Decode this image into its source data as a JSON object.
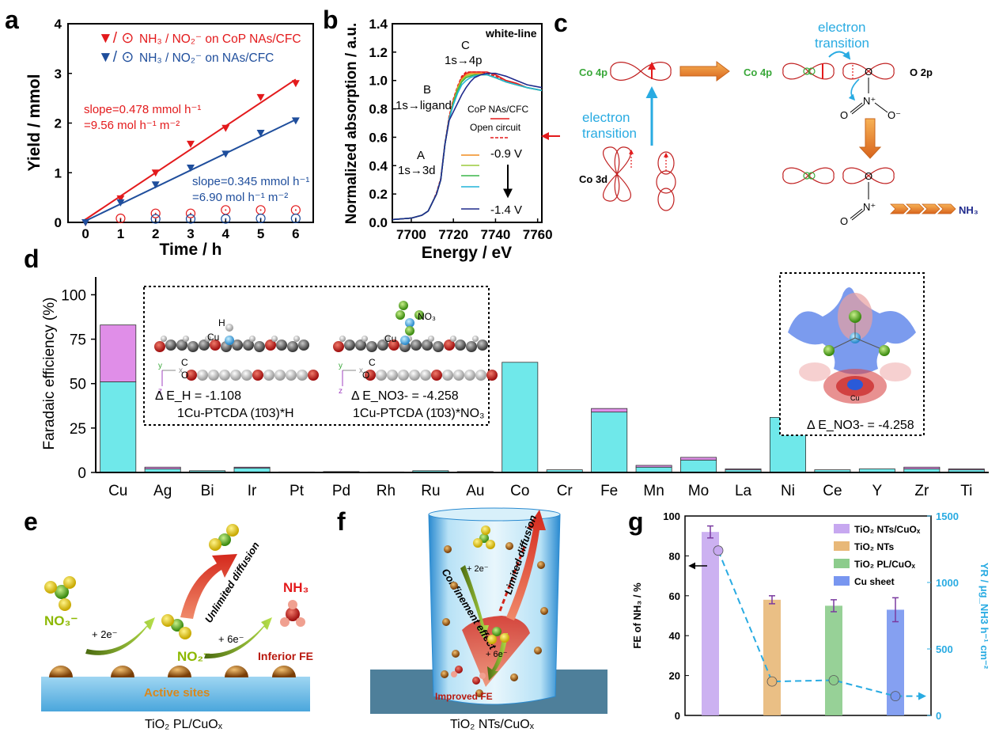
{
  "panels": {
    "a": "a",
    "b": "b",
    "c": "c",
    "d": "d",
    "e": "e",
    "f": "f",
    "g": "g"
  },
  "panel_a": {
    "legend": [
      {
        "markers": "▼/ ⊙",
        "text": "NH₃ / NO₂⁻ on CoP NAs/CFC",
        "color": "#e31a1c"
      },
      {
        "markers": "▼/ ⊙",
        "text": "NH₃ / NO₂⁻  on NAs/CFC",
        "color": "#1f4e9c"
      }
    ],
    "slope1_line1": "slope=0.478 mmol h⁻¹",
    "slope1_line2": "=9.56 mol h⁻¹ m⁻²",
    "slope2_line1": "slope=0.345 mmol h⁻¹",
    "slope2_line2": "=6.90 mol h⁻¹ m⁻²"
  },
  "panel_b": {
    "label_white": "white-line",
    "label_C1": "C",
    "label_C2": "1s→4p",
    "label_B1": "B",
    "label_B2": "1s→ligand",
    "label_A1": "A",
    "label_A2": "1s→3d",
    "legend1": "CoP NAs/CFC",
    "legend2": "Open circuit",
    "legend3": "-0.9 V",
    "legend4": "-1.4 V"
  },
  "panel_c": {
    "co4p_left": "Co 4p",
    "co4p_right": "Co 4p",
    "o2p": "O 2p",
    "co3d": "Co 3d",
    "et_up1": "electron",
    "et_up2": "transition",
    "et_mid1": "electron",
    "et_mid2": "transition",
    "nh3": "NH₃",
    "n_plus": "N⁺",
    "o_minus": "O⁻",
    "o": "O"
  },
  "panel_d": {
    "inset1_energy_H": "Δ E_H = -1.108",
    "inset1_caption_H": "1Cu-PTCDA (1̄03)*H",
    "inset1_energy_NO3": "Δ E_NO3- = -4.258",
    "inset1_caption_NO3": "1Cu-PTCDA (1̄03)*NO₃",
    "inset2_energy": "Δ E_NO3- = -4.258",
    "atom_H": "H",
    "atom_Cu": "Cu",
    "atom_C": "C",
    "atom_O": "O",
    "atom_NO3": "NO₃",
    "axis_y": "y",
    "axis_x": "x",
    "axis_z": "z"
  },
  "panel_e": {
    "caption": "TiO₂ PL/CuOₓ",
    "no3": "NO₃⁻",
    "no2": "NO₂⁻",
    "nh3": "NH₃",
    "two_e": "+ 2e⁻",
    "six_e": "+ 6e⁻",
    "unlimited": "Unlimited diffusion",
    "inferior": "Inferior FE",
    "active": "Active sites"
  },
  "panel_f": {
    "caption": "TiO₂ NTs/CuOₓ",
    "two_e": "+ 2e⁻",
    "six_e": "+ 6e⁻",
    "confinement": "Confinement effect",
    "limited": "Limited diffusion",
    "improved": "Improved FE"
  },
  "chart_data": [
    {
      "id": "a",
      "type": "scatter",
      "xlabel": "Time / h",
      "ylabel": "Yield  / mmol",
      "xlim": [
        -0.5,
        6.5
      ],
      "ylim": [
        0,
        4
      ],
      "xticks": [
        0,
        1,
        2,
        3,
        4,
        5,
        6
      ],
      "yticks": [
        0,
        1,
        2,
        3,
        4
      ],
      "series": [
        {
          "name": "NH₃ on CoP NAs/CFC",
          "marker": "triangle-down",
          "color": "#e31a1c",
          "x": [
            0,
            1,
            2,
            3,
            4,
            5,
            6
          ],
          "y": [
            0,
            0.48,
            1.0,
            1.58,
            1.9,
            2.52,
            2.8
          ],
          "fit": {
            "x": [
              0,
              6
            ],
            "y": [
              0.06,
              2.88
            ]
          }
        },
        {
          "name": "NO₂⁻ on CoP NAs/CFC",
          "marker": "circle",
          "color": "#e31a1c",
          "x": [
            1,
            2,
            3,
            4,
            5,
            6
          ],
          "y": [
            0.08,
            0.18,
            0.18,
            0.25,
            0.25,
            0.25
          ]
        },
        {
          "name": "NH₃ on NAs/CFC",
          "marker": "triangle-down",
          "color": "#1f4e9c",
          "x": [
            0,
            1,
            2,
            3,
            4,
            5,
            6
          ],
          "y": [
            0,
            0.4,
            0.76,
            1.1,
            1.38,
            1.8,
            2.05
          ],
          "fit": {
            "x": [
              0,
              6
            ],
            "y": [
              0.03,
              2.07
            ]
          }
        },
        {
          "name": "NO₂⁻ on NAs/CFC",
          "marker": "circle",
          "color": "#1f4e9c",
          "x": [
            2,
            3,
            4,
            5,
            6
          ],
          "y": [
            0.07,
            0.07,
            0.07,
            0.08,
            0.08
          ]
        }
      ]
    },
    {
      "id": "b",
      "type": "line",
      "xlabel": "Energy / eV",
      "ylabel": "Normalized absorption / a.u.",
      "xlim": [
        7691,
        7762
      ],
      "ylim": [
        0,
        1.4
      ],
      "xticks": [
        7700,
        7720,
        7740,
        7760
      ],
      "yticks": [
        0.0,
        0.2,
        0.4,
        0.6,
        0.8,
        1.0,
        1.2,
        1.4
      ],
      "series": [
        {
          "name": "CoP NAs/CFC",
          "color": "#e31a1c",
          "dash": false,
          "x": [
            7691,
            7700,
            7705,
            7708,
            7710,
            7712,
            7714,
            7716,
            7718,
            7720,
            7722,
            7724,
            7726,
            7728,
            7730,
            7733,
            7736,
            7740,
            7745,
            7750,
            7755,
            7762
          ],
          "y": [
            0.02,
            0.03,
            0.05,
            0.08,
            0.14,
            0.2,
            0.3,
            0.55,
            0.74,
            0.86,
            0.95,
            1.02,
            1.05,
            1.06,
            1.06,
            1.06,
            1.06,
            1.04,
            1.0,
            0.98,
            0.95,
            0.93
          ]
        },
        {
          "name": "Open circuit",
          "color": "#e31a1c",
          "dash": true,
          "x": [
            7691,
            7700,
            7705,
            7708,
            7710,
            7712,
            7714,
            7716,
            7718,
            7720,
            7722,
            7724,
            7726,
            7728,
            7730,
            7733,
            7736,
            7740,
            7745,
            7750,
            7755,
            7762
          ],
          "y": [
            0.02,
            0.03,
            0.05,
            0.08,
            0.14,
            0.21,
            0.31,
            0.56,
            0.75,
            0.87,
            0.96,
            1.03,
            1.06,
            1.06,
            1.06,
            1.06,
            1.05,
            1.03,
            0.99,
            0.97,
            0.95,
            0.93
          ]
        },
        {
          "name": "-0.9 V",
          "color": "#f08c1e",
          "dash": false,
          "x": [
            7691,
            7700,
            7705,
            7708,
            7710,
            7712,
            7714,
            7716,
            7718,
            7720,
            7722,
            7724,
            7726,
            7728,
            7730,
            7733,
            7736,
            7740,
            7745,
            7750,
            7755,
            7762
          ],
          "y": [
            0.02,
            0.03,
            0.05,
            0.08,
            0.14,
            0.2,
            0.3,
            0.55,
            0.73,
            0.85,
            0.95,
            1.01,
            1.04,
            1.05,
            1.05,
            1.05,
            1.04,
            1.02,
            0.99,
            0.97,
            0.95,
            0.93
          ]
        },
        {
          "name": "",
          "color": "#9ccc3c",
          "dash": false,
          "x": [
            7691,
            7700,
            7705,
            7708,
            7710,
            7712,
            7714,
            7716,
            7718,
            7720,
            7722,
            7724,
            7726,
            7728,
            7730,
            7733,
            7736,
            7740,
            7745,
            7750,
            7755,
            7762
          ],
          "y": [
            0.02,
            0.03,
            0.05,
            0.08,
            0.14,
            0.2,
            0.3,
            0.55,
            0.73,
            0.85,
            0.94,
            1.0,
            1.03,
            1.04,
            1.04,
            1.04,
            1.04,
            1.02,
            0.99,
            0.97,
            0.95,
            0.93
          ]
        },
        {
          "name": "",
          "color": "#3ab54a",
          "dash": false,
          "x": [
            7691,
            7700,
            7705,
            7708,
            7710,
            7712,
            7714,
            7716,
            7718,
            7720,
            7722,
            7724,
            7726,
            7728,
            7730,
            7733,
            7736,
            7740,
            7745,
            7750,
            7755,
            7762
          ],
          "y": [
            0.02,
            0.03,
            0.05,
            0.08,
            0.14,
            0.2,
            0.3,
            0.55,
            0.73,
            0.84,
            0.93,
            0.99,
            1.02,
            1.03,
            1.04,
            1.04,
            1.04,
            1.02,
            0.99,
            0.97,
            0.95,
            0.93
          ]
        },
        {
          "name": "",
          "color": "#20b4d8",
          "dash": false,
          "x": [
            7691,
            7700,
            7705,
            7708,
            7710,
            7712,
            7714,
            7716,
            7718,
            7720,
            7722,
            7724,
            7726,
            7728,
            7730,
            7733,
            7736,
            7740,
            7745,
            7750,
            7755,
            7762
          ],
          "y": [
            0.02,
            0.03,
            0.05,
            0.08,
            0.14,
            0.2,
            0.3,
            0.55,
            0.73,
            0.83,
            0.91,
            0.97,
            1.0,
            1.02,
            1.03,
            1.04,
            1.04,
            1.02,
            0.99,
            0.97,
            0.95,
            0.93
          ]
        },
        {
          "name": "-1.4 V",
          "color": "#1f2a8c",
          "dash": false,
          "x": [
            7691,
            7700,
            7705,
            7708,
            7710,
            7712,
            7714,
            7716,
            7718,
            7720,
            7722,
            7724,
            7726,
            7728,
            7730,
            7733,
            7736,
            7740,
            7745,
            7750,
            7755,
            7762
          ],
          "y": [
            0.02,
            0.03,
            0.05,
            0.08,
            0.14,
            0.2,
            0.3,
            0.55,
            0.72,
            0.78,
            0.84,
            0.9,
            0.95,
            0.99,
            1.02,
            1.04,
            1.05,
            1.05,
            1.03,
            1.0,
            0.97,
            0.95
          ]
        }
      ]
    },
    {
      "id": "d",
      "type": "bar",
      "xlabel": "",
      "ylabel": "Faradaic efficiency (%)",
      "ylim": [
        0,
        110
      ],
      "yticks": [
        0,
        25,
        50,
        75,
        100
      ],
      "categories": [
        "Cu",
        "Ag",
        "Bi",
        "Ir",
        "Pt",
        "Pd",
        "Rh",
        "Ru",
        "Au",
        "Co",
        "Cr",
        "Fe",
        "Mn",
        "Mo",
        "La",
        "Ni",
        "Ce",
        "Y",
        "Zr",
        "Ti"
      ],
      "series": [
        {
          "name": "",
          "color": "#6fe8ea",
          "values": [
            51,
            2,
            1,
            2.5,
            0.3,
            0.5,
            0.3,
            1,
            0.5,
            62,
            1.5,
            34,
            3,
            7,
            1.5,
            31,
            1.5,
            2,
            2,
            1.5
          ]
        },
        {
          "name": "",
          "color": "#e08ee8",
          "values": [
            32,
            1,
            0,
            0.5,
            0,
            0,
            0,
            0,
            0,
            0,
            0,
            2,
            1,
            1.5,
            0.5,
            0,
            0,
            0,
            1,
            0.5
          ]
        }
      ]
    },
    {
      "id": "g",
      "type": "bar",
      "xlabel": "",
      "ylabel": "FE of NH₃ / %",
      "ylabel_right": "YR / μg_NH3 h⁻¹ cm⁻²",
      "ylim": [
        0,
        100
      ],
      "ylim_right": [
        0,
        1500
      ],
      "yticks": [
        0,
        20,
        40,
        60,
        80,
        100
      ],
      "yticks_right": [
        0,
        500,
        1000,
        1500
      ],
      "categories": [
        "TiO₂ NTs/CuOₓ",
        "TiO₂ NTs",
        "TiO₂ PL/CuOₓ",
        "Cu sheet"
      ],
      "legend": [
        "TiO₂ NTs/CuOₓ",
        "TiO₂ NTs",
        "TiO₂ PL/CuOₓ",
        "Cu sheet"
      ],
      "colors": [
        "#c7a8f0",
        "#e8b878",
        "#8ccc8c",
        "#7896f0"
      ],
      "fe_values": [
        92,
        58,
        55,
        53
      ],
      "fe_errors": [
        3,
        2,
        3,
        6
      ],
      "yr_values": [
        1240,
        255,
        265,
        145
      ]
    }
  ]
}
